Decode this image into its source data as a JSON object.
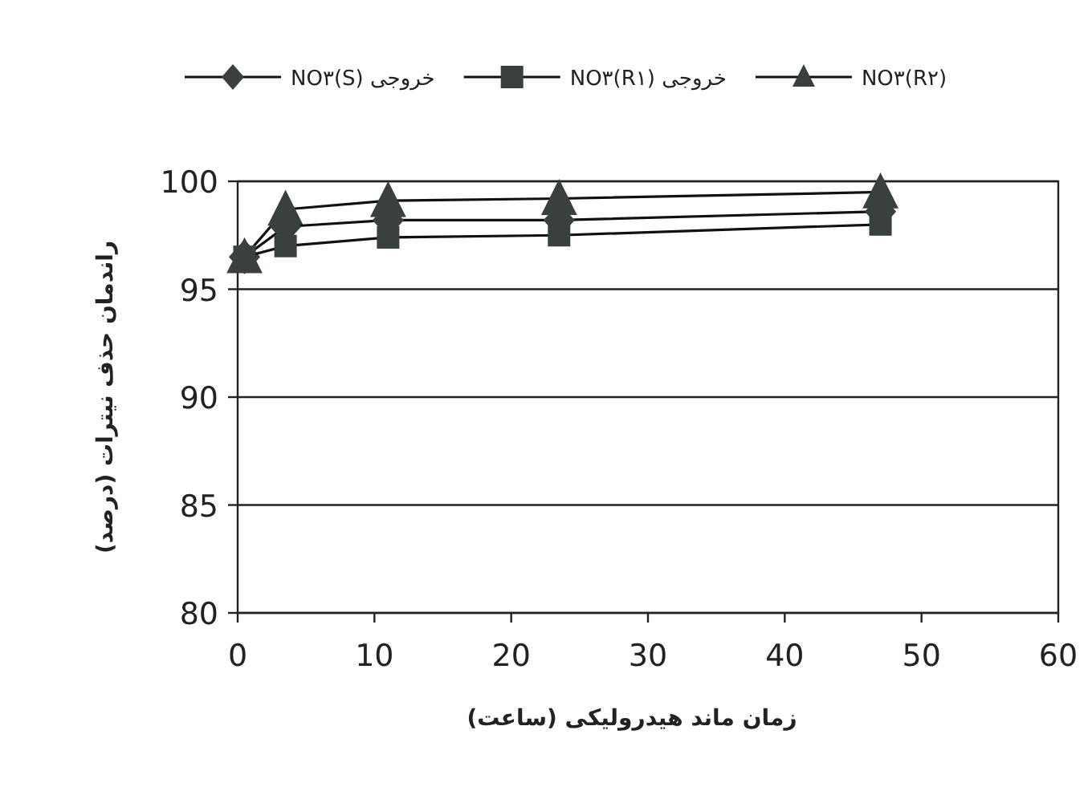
{
  "chart_data": {
    "type": "line",
    "xlabel": "زمان ماند هیدرولیکی (ساعت)",
    "ylabel": "راندمان حذف نیترات (درصد)",
    "xlim": [
      0,
      60
    ],
    "xticks": [
      0,
      10,
      20,
      30,
      40,
      50,
      60
    ],
    "ylim": [
      80,
      100
    ],
    "yticks": [
      80,
      85,
      90,
      95,
      100
    ],
    "grid": "y",
    "legend": "top",
    "line_style": "solid",
    "series": [
      {
        "name": "خروجی NO۳(S)",
        "color": "#3a403d",
        "marker": "diamond",
        "x": [
          0.5,
          3.5,
          11,
          23.5,
          47
        ],
        "values": [
          96.5,
          97.9,
          98.2,
          98.2,
          98.6
        ]
      },
      {
        "name": "خروجی NO۳(R۱)",
        "color": "#3a403d",
        "marker": "square",
        "x": [
          0.5,
          3.5,
          11,
          23.5,
          47
        ],
        "values": [
          96.5,
          97.0,
          97.4,
          97.5,
          98.0
        ]
      },
      {
        "name": "NO۳(R۲)",
        "color": "#3a403d",
        "marker": "triangle",
        "x": [
          0.5,
          3.5,
          11,
          23.5,
          47
        ],
        "values": [
          96.5,
          98.7,
          99.1,
          99.2,
          99.5
        ]
      }
    ]
  }
}
